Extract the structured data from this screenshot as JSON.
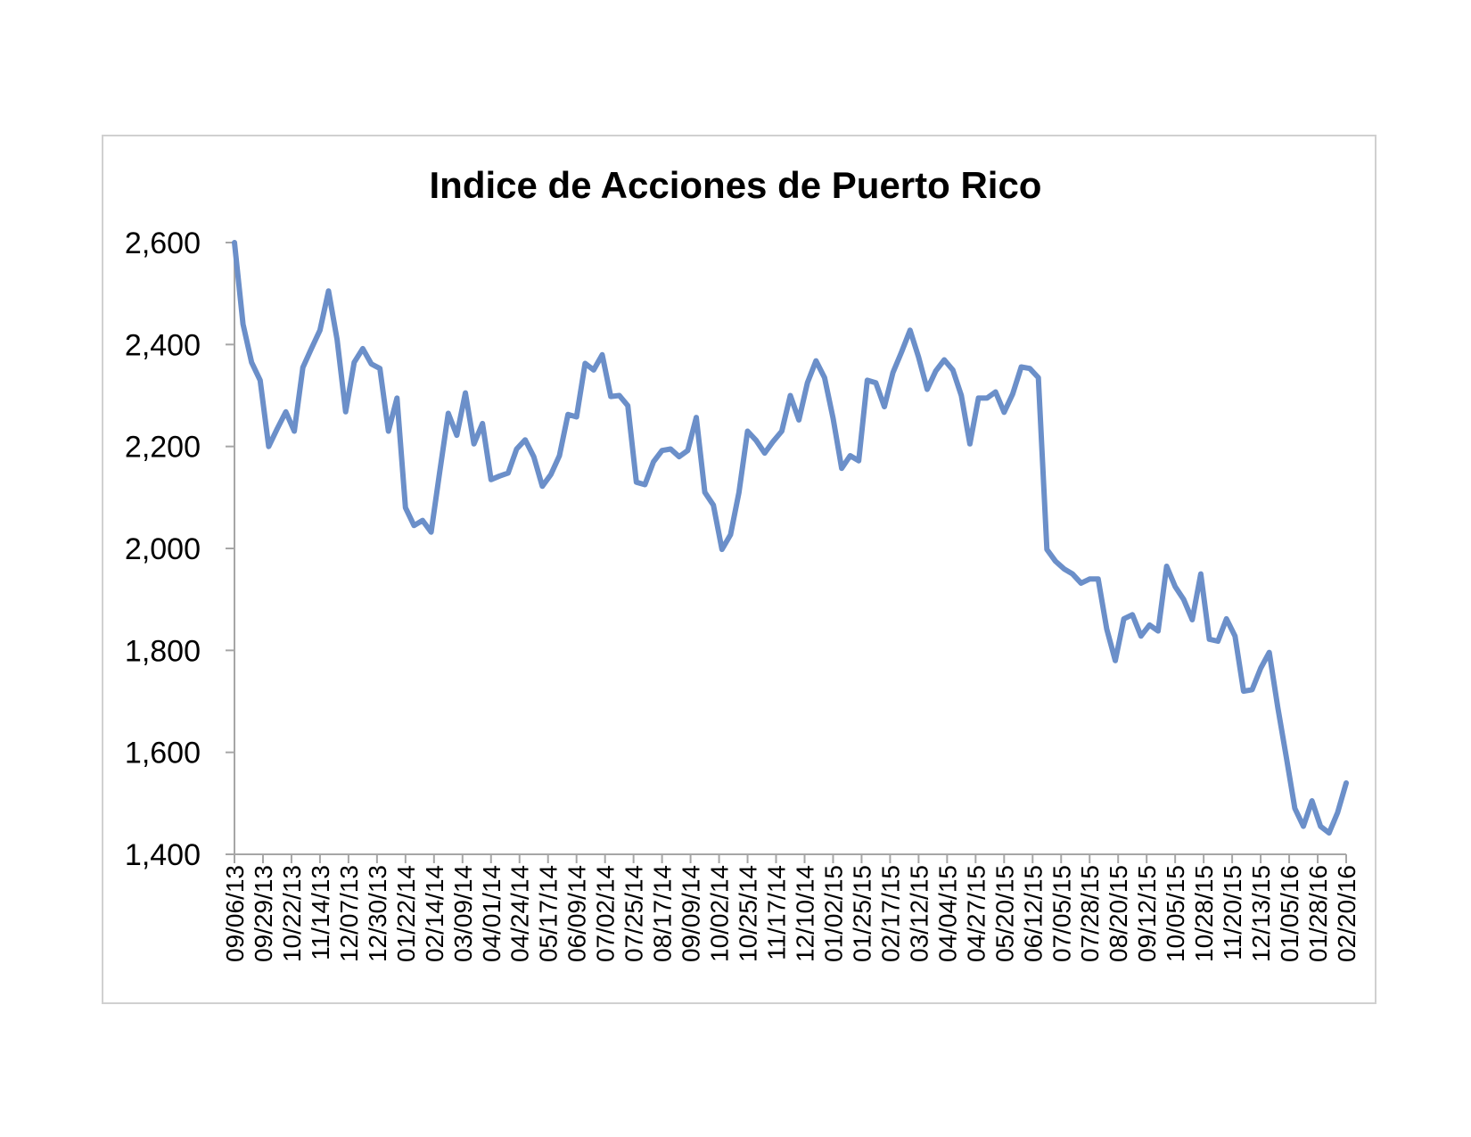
{
  "chart_data": {
    "type": "line",
    "title": "Indice de Acciones de Puerto Rico",
    "xlabel": "",
    "ylabel": "",
    "ylim": [
      1400,
      2600
    ],
    "yticks": [
      1400,
      1600,
      1800,
      2000,
      2200,
      2400,
      2600
    ],
    "ytick_labels": [
      "1,400",
      "1,600",
      "1,800",
      "2,000",
      "2,200",
      "2,400",
      "2,600"
    ],
    "xtick_labels": [
      "09/06/13",
      "09/29/13",
      "10/22/13",
      "11/14/13",
      "12/07/13",
      "12/30/13",
      "01/22/14",
      "02/14/14",
      "03/09/14",
      "04/01/14",
      "04/24/14",
      "05/17/14",
      "06/09/14",
      "07/02/14",
      "07/25/14",
      "08/17/14",
      "09/09/14",
      "10/02/14",
      "10/25/14",
      "11/17/14",
      "12/10/14",
      "01/02/15",
      "01/25/15",
      "02/17/15",
      "03/12/15",
      "04/04/15",
      "04/27/15",
      "05/20/15",
      "06/12/15",
      "07/05/15",
      "07/28/15",
      "08/20/15",
      "09/12/15",
      "10/05/15",
      "10/28/15",
      "11/20/15",
      "12/13/15",
      "01/05/16",
      "01/28/16",
      "02/20/16"
    ],
    "grid": false,
    "legend": "none",
    "line_color": "#6b8fc9",
    "series": [
      {
        "values": [
          2600,
          2440,
          2365,
          2330,
          2200,
          2235,
          2268,
          2230,
          2355,
          2392,
          2428,
          2505,
          2410,
          2268,
          2365,
          2392,
          2362,
          2353,
          2230,
          2295,
          2080,
          2045,
          2055,
          2032,
          2150,
          2265,
          2222,
          2305,
          2205,
          2245,
          2135,
          2142,
          2148,
          2195,
          2213,
          2180,
          2122,
          2145,
          2182,
          2263,
          2258,
          2363,
          2350,
          2380,
          2298,
          2300,
          2280,
          2130,
          2125,
          2170,
          2192,
          2195,
          2180,
          2192,
          2257,
          2110,
          2085,
          1998,
          2027,
          2110,
          2230,
          2212,
          2187,
          2210,
          2230,
          2300,
          2252,
          2325,
          2368,
          2335,
          2255,
          2157,
          2182,
          2172,
          2330,
          2325,
          2278,
          2345,
          2385,
          2428,
          2375,
          2312,
          2348,
          2370,
          2350,
          2300,
          2205,
          2295,
          2295,
          2307,
          2267,
          2303,
          2356,
          2353,
          2335,
          1998,
          1975,
          1960,
          1950,
          1932,
          1940,
          1940,
          1842,
          1780,
          1862,
          1870,
          1828,
          1850,
          1838,
          1965,
          1925,
          1900,
          1860,
          1950,
          1822,
          1818,
          1862,
          1828,
          1720,
          1723,
          1765,
          1796,
          1688,
          1590,
          1490,
          1455,
          1505,
          1455,
          1442,
          1482,
          1540
        ]
      }
    ]
  }
}
